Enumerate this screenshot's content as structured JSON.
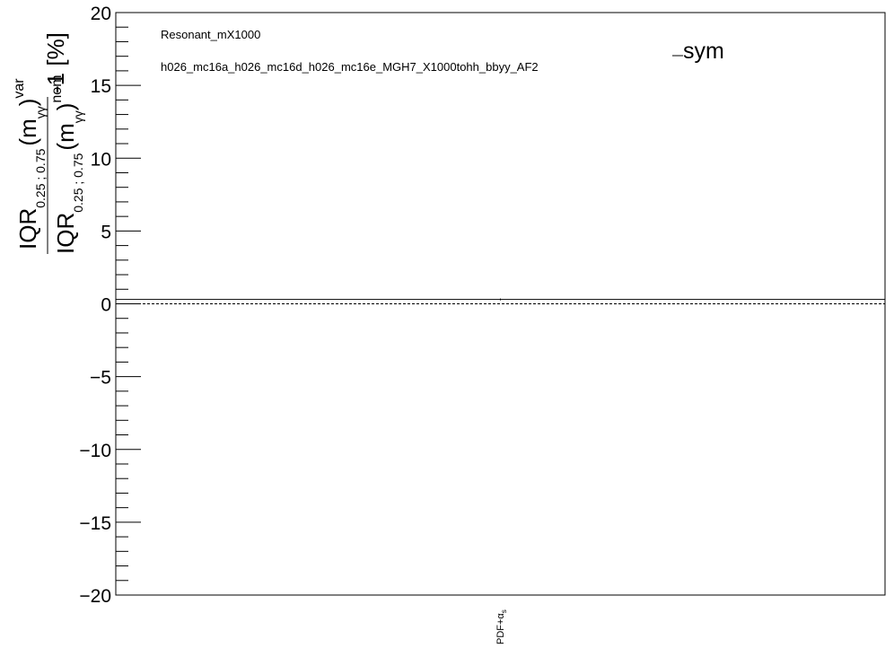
{
  "chart_data": {
    "type": "line",
    "ylim": [
      -20,
      20
    ],
    "y_ticks": [
      20,
      15,
      10,
      5,
      0,
      -5,
      -10,
      -15,
      -20
    ],
    "y_tick_labels": [
      "20",
      "15",
      "10",
      "5",
      "0",
      "−5",
      "−10",
      "−15",
      "−20"
    ],
    "ylabel": {
      "num_main": "IQR",
      "num_sub": "0.25 ; 0.75",
      "num_paren_open": "(m",
      "num_paren_sub": "γγ",
      "num_paren_close": ")",
      "num_sup": "var",
      "den_main": "IQR",
      "den_sub": "0.25 ; 0.75",
      "den_paren_open": "(m",
      "den_paren_sub": "γγ",
      "den_paren_close": ")",
      "den_sup": "nom",
      "suffix": "-1 [%]"
    },
    "categories": [
      "PDF+αs"
    ],
    "category_label": {
      "main": "PDF+α",
      "sub": "s"
    },
    "series": [
      {
        "name": "sym",
        "values": [
          0.3
        ],
        "color": "#000000"
      }
    ],
    "reference_line": {
      "y": 0,
      "style": "dashed",
      "color": "#000000"
    },
    "annotations": [
      "Resonant_mX1000",
      "h026_mc16a_h026_mc16d_h026_mc16e_MGH7_X1000tohh_bbyy_AF2"
    ],
    "legend": {
      "position": "top-right",
      "entries": [
        "sym"
      ]
    },
    "grid": false
  }
}
